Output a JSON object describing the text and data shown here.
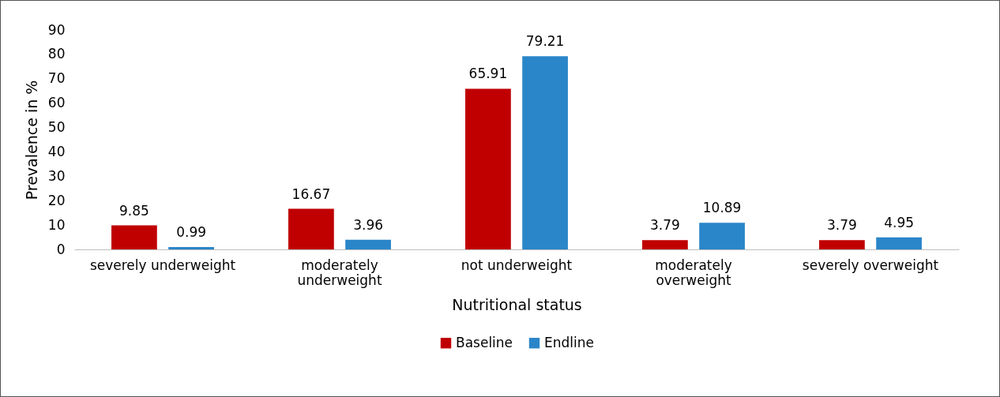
{
  "chart_data": {
    "type": "bar",
    "xlabel": "Nutritional status",
    "ylabel": "Prevalence  in %",
    "categories": [
      "severely underweight",
      "moderately underweight",
      "not underweight",
      "moderately overweight",
      "severely overweight"
    ],
    "series": [
      {
        "name": "Baseline",
        "color": "#c00000",
        "values": [
          9.85,
          16.67,
          65.91,
          3.79,
          3.79
        ]
      },
      {
        "name": "Endline",
        "color": "#2a86c9",
        "values": [
          0.99,
          3.96,
          79.21,
          10.89,
          4.95
        ]
      }
    ],
    "ylim": [
      0,
      90
    ],
    "yticks": [
      0,
      10,
      20,
      30,
      40,
      50,
      60,
      70,
      80,
      90
    ],
    "data_labels": true,
    "grid": false,
    "legend": "bottom"
  }
}
